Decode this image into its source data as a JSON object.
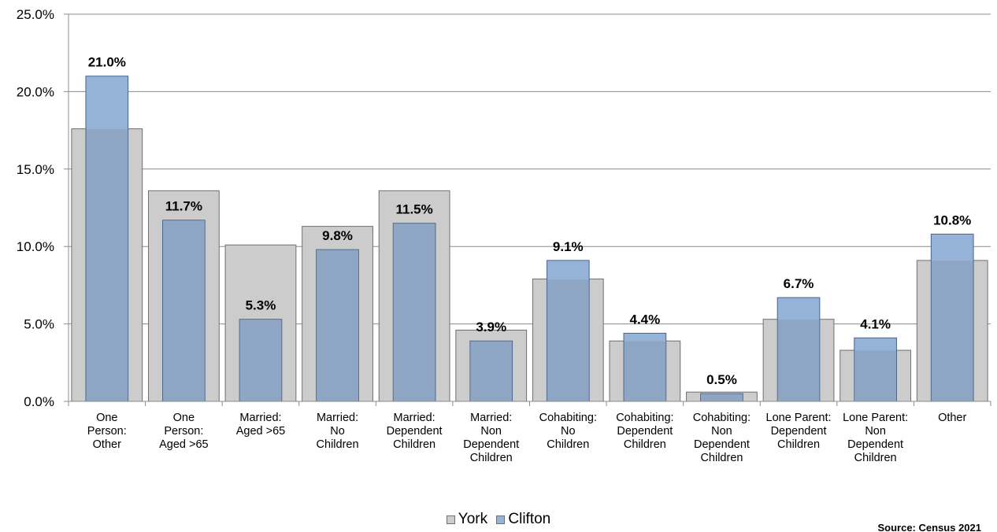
{
  "chart_data": {
    "type": "bar",
    "categories": [
      [
        "One",
        "Person:",
        "Other"
      ],
      [
        "One",
        "Person:",
        "Aged >65"
      ],
      [
        "Married:",
        "Aged >65"
      ],
      [
        "Married:",
        "No",
        "Children"
      ],
      [
        "Married:",
        "Dependent",
        "Children"
      ],
      [
        "Married:",
        "Non",
        "Dependent",
        "Children"
      ],
      [
        "Cohabiting:",
        "No",
        "Children"
      ],
      [
        "Cohabiting:",
        "Dependent",
        "Children"
      ],
      [
        "Cohabiting:",
        "Non",
        "Dependent",
        "Children"
      ],
      [
        "Lone Parent:",
        "Dependent",
        "Children"
      ],
      [
        "Lone Parent:",
        "Non",
        "Dependent",
        "Children"
      ],
      [
        "Other"
      ]
    ],
    "series": [
      {
        "name": "York",
        "values": [
          17.6,
          13.6,
          10.1,
          11.3,
          13.6,
          4.6,
          7.9,
          3.9,
          0.6,
          5.3,
          3.3,
          9.1
        ],
        "color": "#cccccc"
      },
      {
        "name": "Clifton",
        "values": [
          21.0,
          11.7,
          5.3,
          9.8,
          11.5,
          3.9,
          9.1,
          4.4,
          0.5,
          6.7,
          4.1,
          10.8
        ],
        "color": "#95b3d7"
      }
    ],
    "data_labels": [
      "21.0%",
      "11.7%",
      "5.3%",
      "9.8%",
      "11.5%",
      "3.9%",
      "9.1%",
      "4.4%",
      "0.5%",
      "6.7%",
      "4.1%",
      "10.8%"
    ],
    "yticks": [
      "0.0%",
      "5.0%",
      "10.0%",
      "15.0%",
      "20.0%",
      "25.0%"
    ],
    "ylim": [
      0,
      25
    ],
    "grid": true,
    "legend_position": "bottom"
  },
  "legend": [
    {
      "label": "York",
      "color": "#cccccc"
    },
    {
      "label": "Clifton",
      "color": "#95b3d7"
    }
  ],
  "source": "Source: Census 2021"
}
